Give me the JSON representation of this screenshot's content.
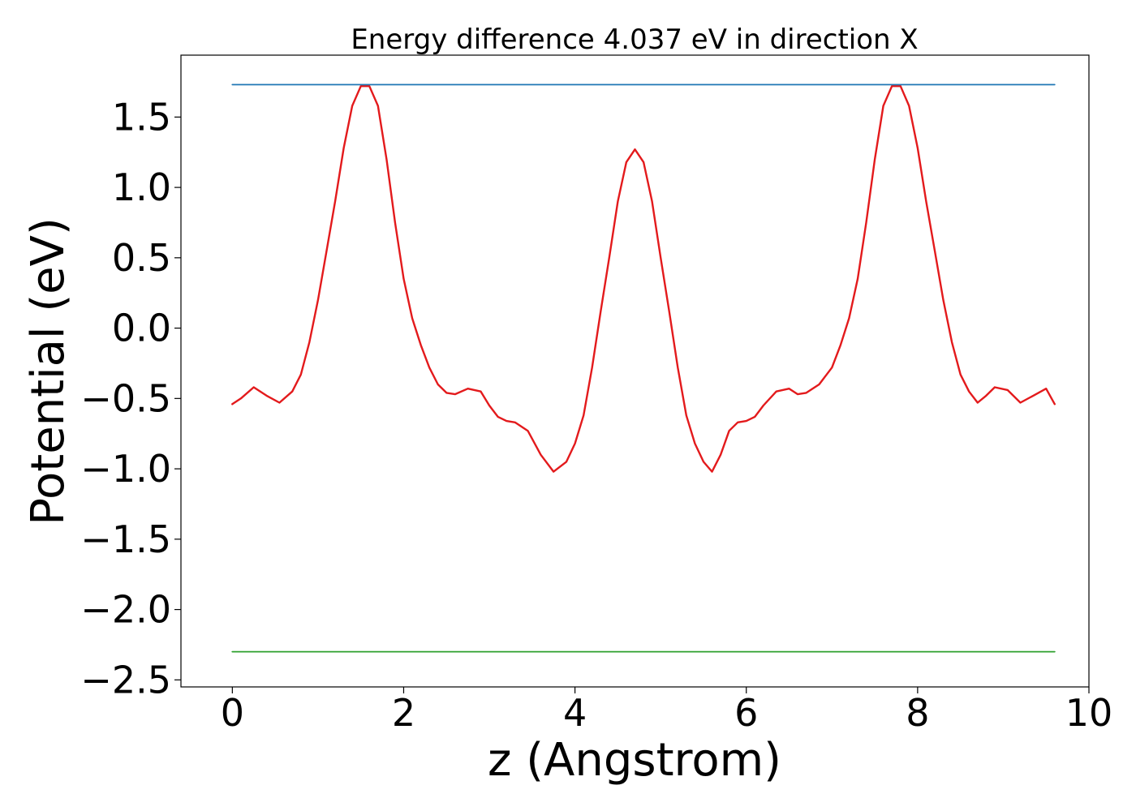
{
  "chart_data": {
    "type": "line",
    "title": "Energy difference 4.037 eV in direction X",
    "xlabel": "z (Angstrom)",
    "ylabel": "Potential (eV)",
    "xlim": [
      -0.6,
      10.0
    ],
    "ylim": [
      -2.55,
      1.94
    ],
    "x_ticks": [
      0,
      2,
      4,
      6,
      8,
      10
    ],
    "x_tick_labels": [
      "0",
      "2",
      "4",
      "6",
      "8",
      "10"
    ],
    "y_ticks": [
      -2.5,
      -2.0,
      -1.5,
      -1.0,
      -0.5,
      0.0,
      0.5,
      1.0,
      1.5
    ],
    "y_tick_labels": [
      "−2.5",
      "−2.0",
      "−1.5",
      "−1.0",
      "−0.5",
      "0.0",
      "0.5",
      "1.0",
      "1.5"
    ],
    "grid": false,
    "series": [
      {
        "color": "#e31a1c",
        "x": [
          0.0,
          0.1,
          0.25,
          0.4,
          0.55,
          0.7,
          0.8,
          0.9,
          1.0,
          1.1,
          1.2,
          1.3,
          1.4,
          1.5,
          1.6,
          1.7,
          1.8,
          1.9,
          2.0,
          2.1,
          2.2,
          2.3,
          2.4,
          2.5,
          2.6,
          2.75,
          2.9,
          3.0,
          3.1,
          3.2,
          3.3,
          3.45,
          3.6,
          3.75,
          3.9,
          4.0,
          4.1,
          4.2,
          4.3,
          4.4,
          4.5,
          4.6,
          4.7,
          4.8,
          4.9,
          5.0,
          5.1,
          5.2,
          5.3,
          5.4,
          5.5,
          5.6,
          5.7,
          5.8,
          5.9,
          6.0,
          6.1,
          6.2,
          6.35,
          6.5,
          6.6,
          6.7,
          6.85,
          7.0,
          7.1,
          7.2,
          7.3,
          7.4,
          7.5,
          7.6,
          7.7,
          7.8,
          7.9,
          8.0,
          8.1,
          8.2,
          8.3,
          8.4,
          8.5,
          8.6,
          8.7,
          8.8,
          8.9,
          9.05,
          9.2,
          9.35,
          9.5,
          9.6
        ],
        "y": [
          -0.54,
          -0.5,
          -0.42,
          -0.48,
          -0.53,
          -0.45,
          -0.33,
          -0.1,
          0.2,
          0.55,
          0.9,
          1.28,
          1.58,
          1.72,
          1.72,
          1.58,
          1.2,
          0.75,
          0.35,
          0.07,
          -0.12,
          -0.28,
          -0.4,
          -0.46,
          -0.47,
          -0.43,
          -0.45,
          -0.55,
          -0.63,
          -0.66,
          -0.67,
          -0.73,
          -0.9,
          -1.02,
          -0.95,
          -0.82,
          -0.62,
          -0.28,
          0.12,
          0.5,
          0.9,
          1.18,
          1.27,
          1.18,
          0.9,
          0.5,
          0.12,
          -0.28,
          -0.62,
          -0.82,
          -0.95,
          -1.02,
          -0.9,
          -0.73,
          -0.67,
          -0.66,
          -0.63,
          -0.55,
          -0.45,
          -0.43,
          -0.47,
          -0.46,
          -0.4,
          -0.28,
          -0.12,
          0.07,
          0.35,
          0.75,
          1.2,
          1.58,
          1.72,
          1.72,
          1.58,
          1.28,
          0.9,
          0.55,
          0.2,
          -0.1,
          -0.33,
          -0.45,
          -0.53,
          -0.48,
          -0.42,
          -0.44,
          -0.53,
          -0.48,
          -0.43,
          -0.54
        ]
      },
      {
        "color": "#1f77b4",
        "x": [
          0.0,
          9.6
        ],
        "y": [
          1.73,
          1.73
        ]
      },
      {
        "color": "#2ca02c",
        "x": [
          0.0,
          9.6
        ],
        "y": [
          -2.3,
          -2.3
        ]
      }
    ]
  }
}
